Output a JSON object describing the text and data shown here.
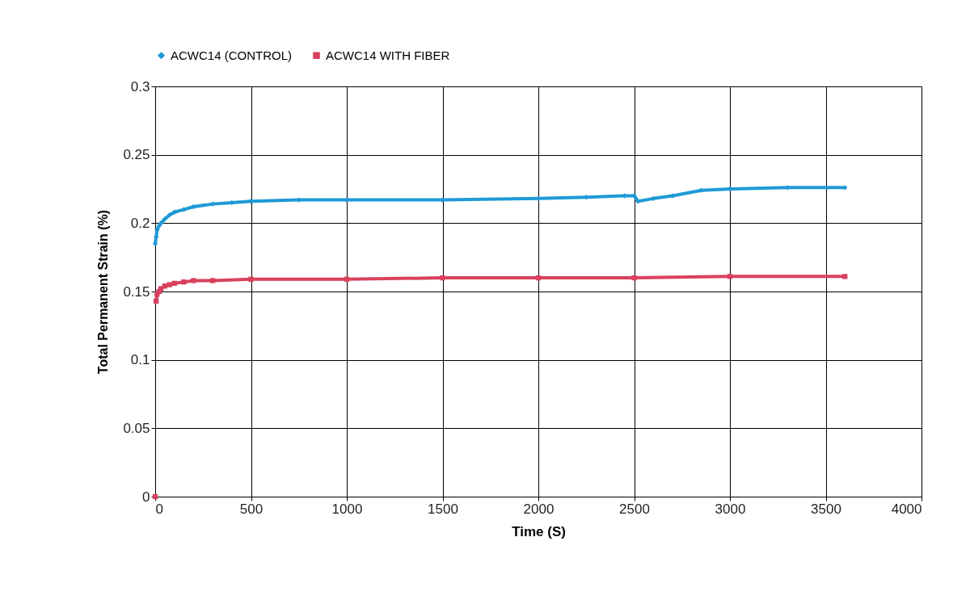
{
  "chart_data": {
    "type": "line",
    "xlabel": "Time (S)",
    "ylabel": "Total Permanent Strain (%)",
    "xlim": [
      0,
      4000
    ],
    "ylim": [
      0,
      0.3
    ],
    "xticks": [
      0,
      500,
      1000,
      1500,
      2000,
      2500,
      3000,
      3500,
      4000
    ],
    "yticks": [
      0,
      0.05,
      0.1,
      0.15,
      0.2,
      0.25,
      0.3
    ],
    "grid": true,
    "legend": "top",
    "series": [
      {
        "name": "ACWC14 (CONTROL)",
        "color": "#1e9ad6",
        "marker": "diamond",
        "x": [
          0,
          5,
          10,
          20,
          30,
          50,
          75,
          100,
          150,
          200,
          300,
          400,
          500,
          750,
          1000,
          1500,
          2000,
          2250,
          2450,
          2500,
          2520,
          2600,
          2700,
          2850,
          3000,
          3300,
          3600
        ],
        "values": [
          0.185,
          0.19,
          0.195,
          0.198,
          0.2,
          0.203,
          0.206,
          0.208,
          0.21,
          0.212,
          0.214,
          0.215,
          0.216,
          0.217,
          0.217,
          0.217,
          0.218,
          0.219,
          0.22,
          0.22,
          0.216,
          0.218,
          0.22,
          0.224,
          0.225,
          0.226,
          0.226
        ]
      },
      {
        "name": "ACWC14 WITH FIBER",
        "color": "#d9415e",
        "marker": "square",
        "x": [
          0,
          1,
          5,
          10,
          20,
          30,
          50,
          75,
          100,
          150,
          200,
          300,
          500,
          1000,
          1500,
          2000,
          2500,
          3000,
          3600
        ],
        "values": [
          0,
          null,
          0.143,
          0.148,
          0.15,
          0.152,
          0.154,
          0.155,
          0.156,
          0.157,
          0.158,
          0.158,
          0.159,
          0.159,
          0.16,
          0.16,
          0.16,
          0.161,
          0.161
        ]
      }
    ]
  }
}
